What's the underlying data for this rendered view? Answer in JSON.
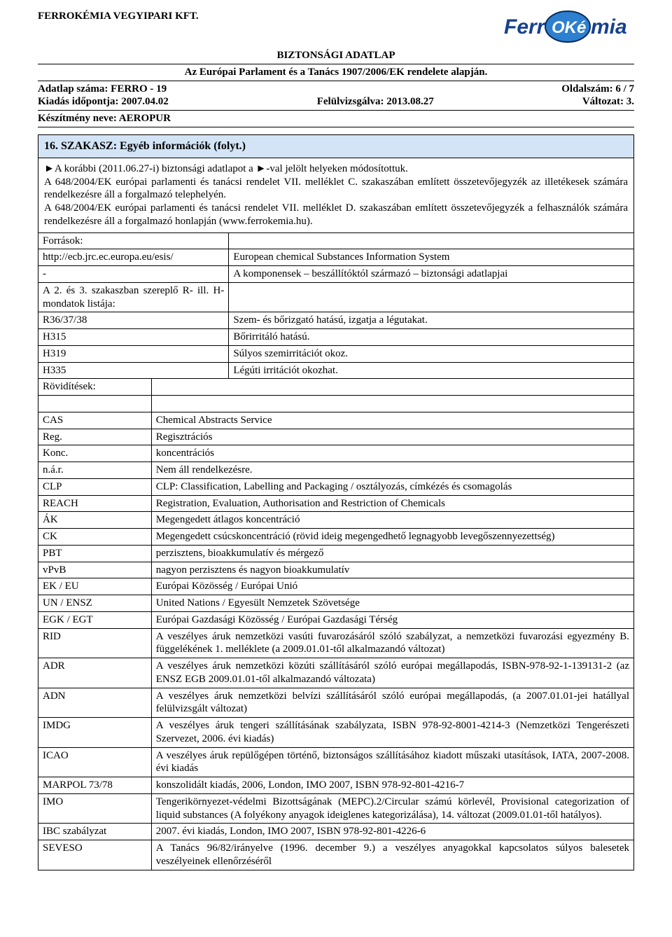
{
  "header": {
    "company": "FERROKÉMIA VEGYIPARI KFT.",
    "doc_title": "BIZTONSÁGI ADATLAP",
    "subtitle": "Az Európai Parlament és a Tanács 1907/2006/EK rendelete alapján.",
    "sheet_no_label": "Adatlap száma: FERRO - 19",
    "page_label": "Oldalszám: 6 / 7",
    "issue_label": "Kiadás időpontja: 2007.04.02",
    "revised_label": "Felülvizsgálva: 2013.08.27",
    "version_label": "Változat: 3.",
    "product_label": "Készítmény neve: AEROPUR",
    "logo_text_ferr": "Ferr",
    "logo_text_oke": "OKé",
    "logo_text_mia": "mia",
    "logo_colors": {
      "main": "#16418f",
      "accent": "#2d7fcf",
      "shadow": "#0a2a5c"
    }
  },
  "section": {
    "title": "16. SZAKASZ: Egyéb információk (folyt.)",
    "para1": "►A korábbi (2011.06.27-i) biztonsági adatlapot a ►-val jelölt helyeken módosítottuk.",
    "para2": "A 648/2004/EK európai parlamenti és tanácsi rendelet VII. melléklet C. szakaszában említett összetevőjegyzék az illetékesek számára rendelkezésre áll a forgalmazó telephelyén.",
    "para3": "A 648/2004/EK európai parlamenti és tanácsi rendelet VII. melléklet D. szakaszában említett összetevőjegyzék a felhasználók számára rendelkezésre áll a forgalmazó honlapján (www.ferrokemia.hu)."
  },
  "sources": {
    "header": "Források:",
    "rows": [
      [
        "http://ecb.jrc.ec.europa.eu/esis/",
        "European chemical Substances Information System"
      ],
      [
        "-",
        "A komponensek – beszállítóktól származó – biztonsági adatlapjai"
      ],
      [
        "A 2. és 3. szakaszban szereplő R- ill. H-mondatok listája:",
        ""
      ],
      [
        "R36/37/38",
        "Szem- és bőrizgató hatású, izgatja a légutakat."
      ],
      [
        "H315",
        "Bőrirritáló hatású."
      ],
      [
        "H319",
        "Súlyos szemirritációt okoz."
      ],
      [
        "H335",
        "Légúti irritációt okozhat."
      ]
    ]
  },
  "abbrev": {
    "header": "Rövidítések:",
    "rows": [
      [
        "CAS",
        "Chemical Abstracts Service"
      ],
      [
        "Reg.",
        "Regisztrációs"
      ],
      [
        "Konc.",
        "koncentrációs"
      ],
      [
        "n.á.r.",
        "Nem áll rendelkezésre."
      ],
      [
        "CLP",
        "CLP: Classification, Labelling and Packaging / osztályozás, címkézés és csomagolás"
      ],
      [
        "REACH",
        "Registration, Evaluation, Authorisation and Restriction of Chemicals"
      ],
      [
        "ÁK",
        "Megengedett átlagos koncentráció"
      ],
      [
        "CK",
        "Megengedett csúcskoncentráció (rövid ideig megengedhető legnagyobb levegőszennyezettség)"
      ],
      [
        "PBT",
        "perzisztens, bioakkumulatív és mérgező"
      ],
      [
        "vPvB",
        "nagyon perzisztens és nagyon bioakkumulatív"
      ],
      [
        "EK / EU",
        "Európai Közösség / Európai Unió"
      ],
      [
        "UN / ENSZ",
        "United Nations / Egyesült Nemzetek Szövetsége"
      ],
      [
        "EGK / EGT",
        "Európai Gazdasági Közösség / Európai Gazdasági Térség"
      ],
      [
        "RID",
        "A veszélyes áruk nemzetközi vasúti fuvarozásáról szóló szabályzat, a nemzetközi fuvarozási egyezmény B. függelékének 1. melléklete (a 2009.01.01-től alkalmazandó változat)"
      ],
      [
        "ADR",
        "A veszélyes áruk nemzetközi közúti szállításáról szóló európai megállapodás, ISBN-978-92-1-139131-2 (az ENSZ EGB 2009.01.01-től alkalmazandó változata)"
      ],
      [
        "ADN",
        "A veszélyes áruk nemzetközi belvízi szállításáról szóló európai megállapodás, (a 2007.01.01-jei hatállyal felülvizsgált változat)"
      ],
      [
        "IMDG",
        "A veszélyes áruk tengeri szállításának szabályzata, ISBN 978-92-8001-4214-3 (Nemzetközi Tengerészeti Szervezet, 2006. évi kiadás)"
      ],
      [
        "ICAO",
        "A veszélyes áruk repülőgépen történő, biztonságos szállításához kiadott műszaki utasítások, IATA, 2007-2008. évi kiadás"
      ],
      [
        "MARPOL 73/78",
        "konszolidált kiadás, 2006, London, IMO 2007, ISBN 978-92-801-4216-7"
      ],
      [
        "IMO",
        "Tengerikörnyezet-védelmi Bizottságának (MEPC).2/Circular számú körlevél, Provisional categorization of liquid substances (A folyékony anyagok ideiglenes kategorizálása), 14. változat (2009.01.01-től hatályos)."
      ],
      [
        "IBC szabályzat",
        "2007. évi kiadás, London, IMO 2007, ISBN 978-92-801-4226-6"
      ],
      [
        "SEVESO",
        "A Tanács 96/82/irányelve (1996. december 9.) a veszélyes anyagokkal kapcsolatos súlyos balesetek veszélyeinek ellenőrzéséről"
      ]
    ]
  }
}
